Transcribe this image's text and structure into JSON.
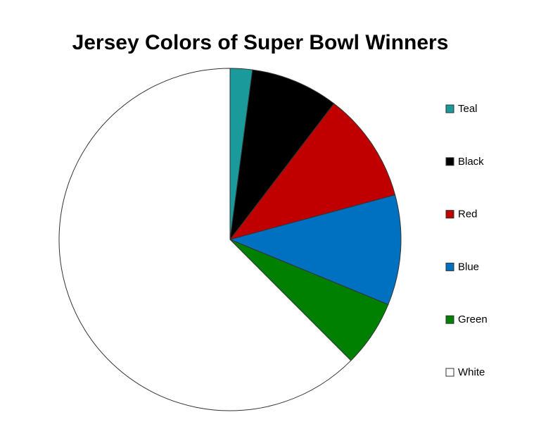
{
  "chart_data": {
    "type": "pie",
    "title": "Jersey Colors of Super Bowl Winners",
    "categories": [
      "Teal",
      "Black",
      "Red",
      "Blue",
      "Green",
      "White"
    ],
    "values": [
      2.1,
      8.3,
      10.4,
      10.4,
      6.3,
      62.5
    ],
    "colors": [
      "#1a9a9a",
      "#000000",
      "#c00000",
      "#0070c0",
      "#008000",
      "#ffffff"
    ],
    "legend": "right"
  }
}
